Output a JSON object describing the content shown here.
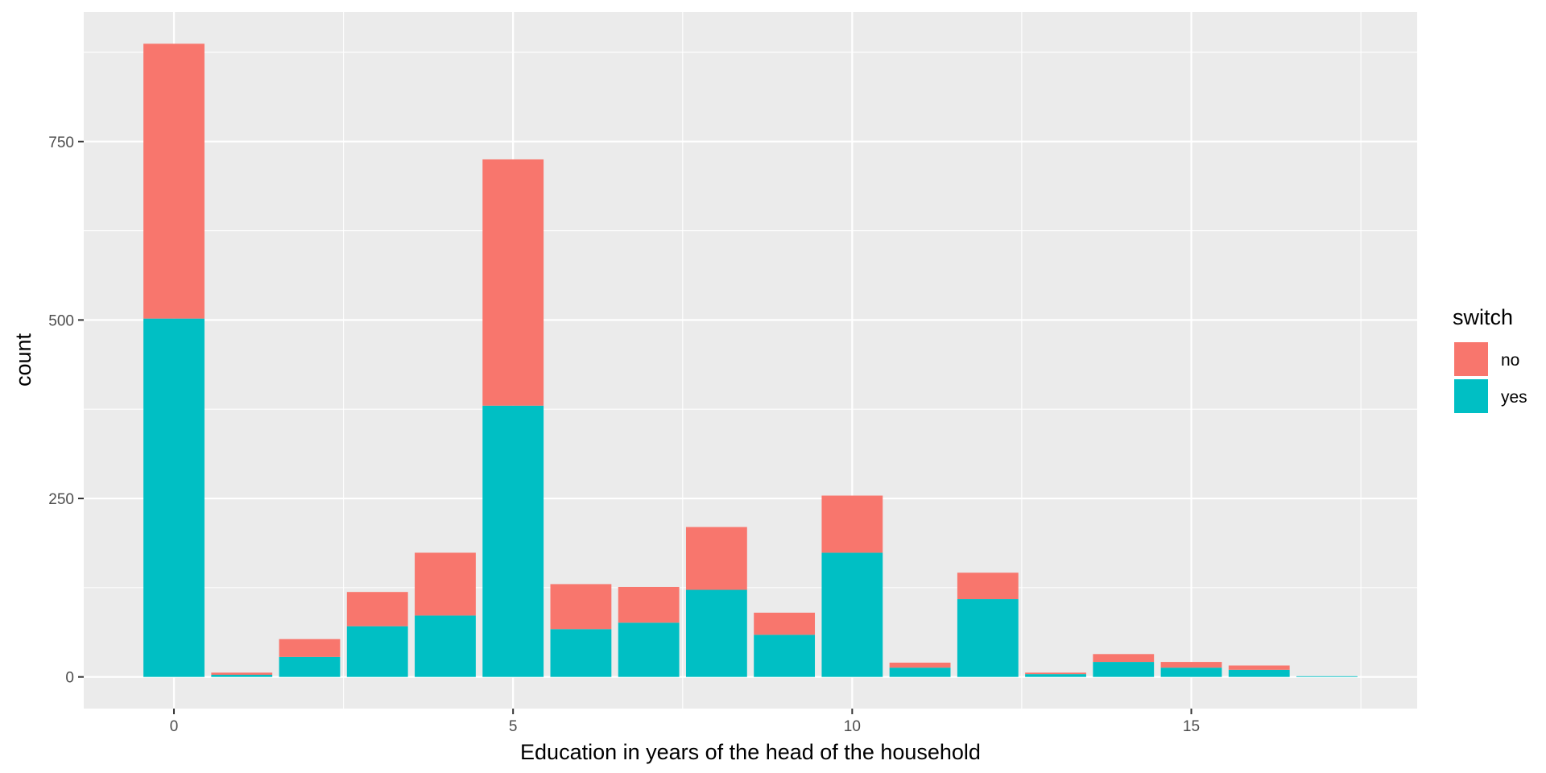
{
  "chart_data": {
    "type": "bar",
    "stacked": true,
    "x": [
      0,
      1,
      2,
      3,
      4,
      5,
      6,
      7,
      8,
      9,
      10,
      11,
      12,
      13,
      14,
      15,
      16,
      17
    ],
    "series": [
      {
        "name": "no",
        "color": "#F8766D",
        "values": [
          385,
          3,
          25,
          48,
          88,
          345,
          63,
          50,
          88,
          31,
          80,
          7,
          37,
          2,
          11,
          8,
          6,
          0
        ]
      },
      {
        "name": "yes",
        "color": "#00BFC4",
        "values": [
          502,
          3,
          28,
          71,
          86,
          380,
          67,
          76,
          122,
          59,
          174,
          13,
          109,
          4,
          21,
          13,
          10,
          1
        ]
      }
    ],
    "xlabel": "Education in years of the head of the household",
    "ylabel": "count",
    "xticks": [
      "0",
      "5",
      "10",
      "15"
    ],
    "xtick_values": [
      0,
      5,
      10,
      15
    ],
    "yticks": [
      "0",
      "250",
      "500",
      "750"
    ],
    "ytick_values": [
      0,
      250,
      500,
      750
    ],
    "xlim": [
      -1.33,
      18.33
    ],
    "ylim": [
      -44.35,
      931.35
    ],
    "legend": {
      "title": "switch",
      "entries": [
        "no",
        "yes"
      ],
      "placement": "right"
    },
    "grid": true,
    "panel_background": "#EBEBEB"
  }
}
